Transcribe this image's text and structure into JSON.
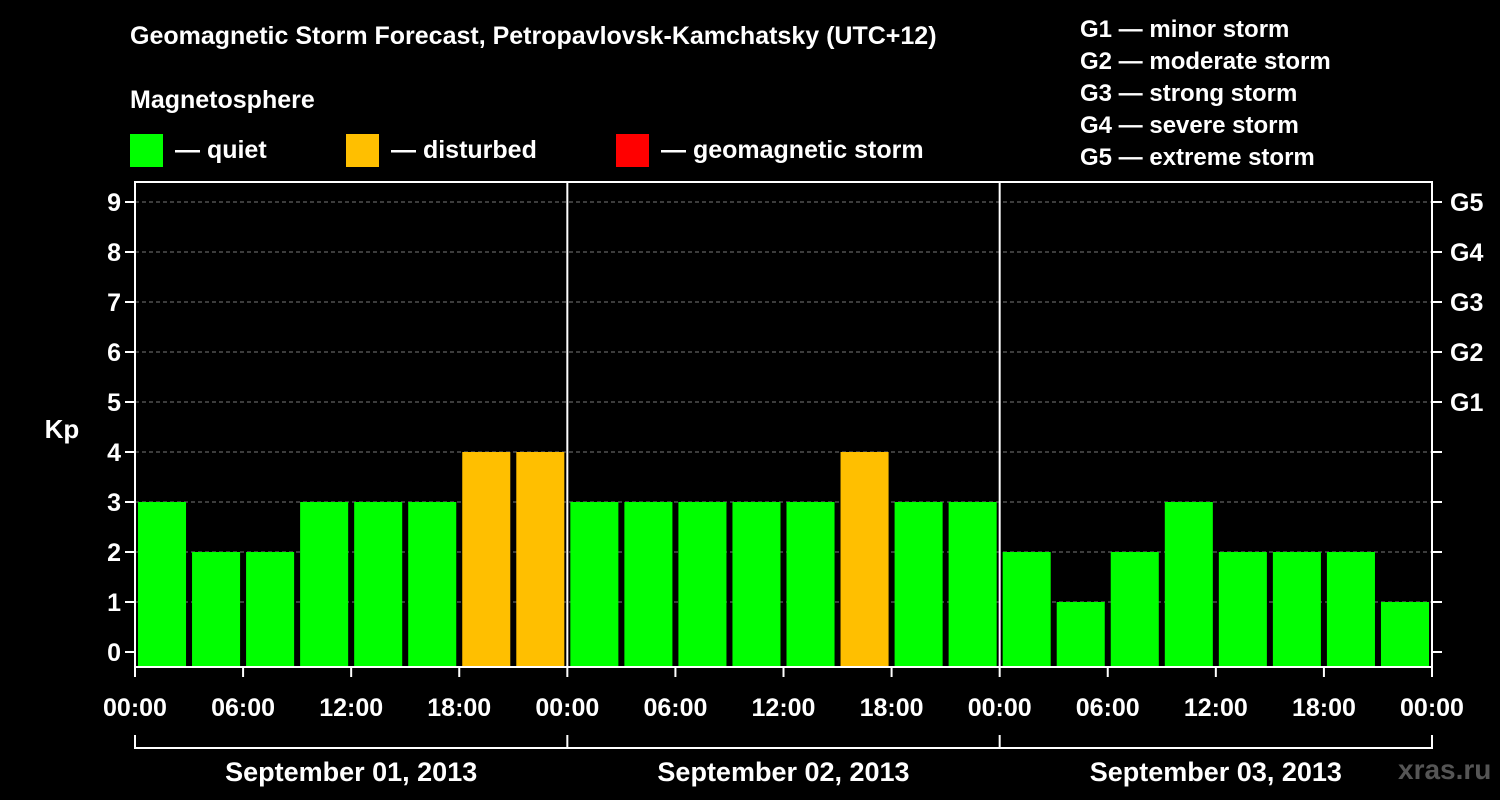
{
  "chart_data": {
    "type": "bar",
    "title": "Geomagnetic Storm Forecast, Petropavlovsk-Kamchatsky (UTC+12)",
    "legend_title": "Magnetosphere",
    "legend": [
      {
        "label": "— quiet",
        "color": "#00ff00"
      },
      {
        "label": "— disturbed",
        "color": "#ffbf00"
      },
      {
        "label": "— geomagnetic storm",
        "color": "#ff0000"
      }
    ],
    "storm_levels": [
      "G1 — minor storm",
      "G2 — moderate storm",
      "G3 — strong storm",
      "G4 — severe storm",
      "G5 — extreme storm"
    ],
    "ylabel": "Kp",
    "ylim": [
      0,
      9
    ],
    "y_ticks": [
      "0",
      "1",
      "2",
      "3",
      "4",
      "5",
      "6",
      "7",
      "8",
      "9"
    ],
    "right_ticks": [
      {
        "kp": 5,
        "label": "G1"
      },
      {
        "kp": 6,
        "label": "G2"
      },
      {
        "kp": 7,
        "label": "G3"
      },
      {
        "kp": 8,
        "label": "G4"
      },
      {
        "kp": 9,
        "label": "G5"
      }
    ],
    "x_tick_labels": [
      "00:00",
      "06:00",
      "12:00",
      "18:00",
      "00:00",
      "06:00",
      "12:00",
      "18:00",
      "00:00",
      "06:00",
      "12:00",
      "18:00",
      "00:00"
    ],
    "days": [
      "September 01, 2013",
      "September 02, 2013",
      "September 03, 2013"
    ],
    "interval_hours": 3,
    "grid": "dashed horizontal at integer Kp",
    "values": [
      3,
      2,
      2,
      3,
      3,
      3,
      4,
      4,
      3,
      3,
      3,
      3,
      3,
      4,
      3,
      3,
      2,
      1,
      2,
      3,
      2,
      2,
      2,
      1
    ],
    "colors": [
      "#00ff00",
      "#00ff00",
      "#00ff00",
      "#00ff00",
      "#00ff00",
      "#00ff00",
      "#ffbf00",
      "#ffbf00",
      "#00ff00",
      "#00ff00",
      "#00ff00",
      "#00ff00",
      "#00ff00",
      "#ffbf00",
      "#00ff00",
      "#00ff00",
      "#00ff00",
      "#00ff00",
      "#00ff00",
      "#00ff00",
      "#00ff00",
      "#00ff00",
      "#00ff00",
      "#00ff00"
    ]
  },
  "watermark": "xras.ru"
}
